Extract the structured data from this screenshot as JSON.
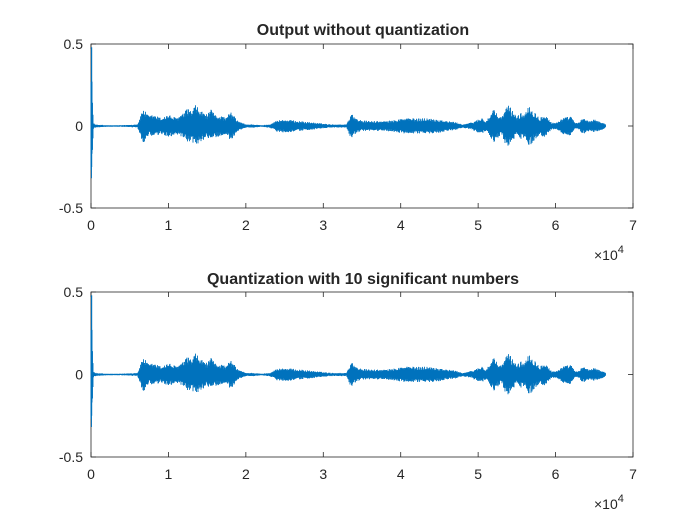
{
  "chart_data": [
    {
      "type": "line",
      "title": "Output without quantization",
      "xlabel": "",
      "ylabel": "",
      "xlim": [
        0,
        70000
      ],
      "ylim": [
        -0.5,
        0.5
      ],
      "xticks": [
        0,
        10000,
        20000,
        30000,
        40000,
        50000,
        60000,
        70000
      ],
      "xtick_labels": [
        "0",
        "1",
        "2",
        "3",
        "4",
        "5",
        "6",
        "7"
      ],
      "yticks": [
        -0.5,
        0,
        0.5
      ],
      "ytick_labels": [
        "-0.5",
        "0",
        "0.5"
      ],
      "x_exponent": {
        "base": "×10",
        "power": "4"
      },
      "grid": false,
      "line_color": "#0072bd",
      "sample_count": 66500,
      "envelope": {
        "x": [
          0,
          300,
          500,
          2000,
          4000,
          6000,
          6400,
          6700,
          7000,
          7500,
          8000,
          9000,
          10000,
          11000,
          12000,
          12500,
          13000,
          13500,
          14000,
          15000,
          15500,
          16000,
          17000,
          17500,
          18000,
          18500,
          19000,
          20000,
          21000,
          22000,
          23000,
          23500,
          24000,
          25000,
          26000,
          27000,
          28000,
          29000,
          30000,
          31000,
          32000,
          33000,
          33700,
          34000,
          35000,
          36000,
          37000,
          38000,
          39000,
          40000,
          41000,
          42000,
          43000,
          44000,
          45000,
          46000,
          47000,
          48000,
          49000,
          50000,
          50500,
          51000,
          51500,
          52000,
          53000,
          53500,
          54000,
          54500,
          55000,
          55500,
          56000,
          56500,
          57000,
          58000,
          58500,
          59000,
          59500,
          60000,
          61000,
          62000,
          62500,
          63000,
          63500,
          64000,
          64500,
          65000,
          65500,
          66000,
          66500
        ],
        "amplitude": [
          0.48,
          0.02,
          0.01,
          0.005,
          0.005,
          0.01,
          0.06,
          0.11,
          0.09,
          0.06,
          0.07,
          0.05,
          0.07,
          0.05,
          0.08,
          0.11,
          0.09,
          0.13,
          0.1,
          0.07,
          0.1,
          0.07,
          0.06,
          0.05,
          0.09,
          0.06,
          0.03,
          0.01,
          0.01,
          0.005,
          0.01,
          0.02,
          0.035,
          0.04,
          0.035,
          0.03,
          0.025,
          0.02,
          0.015,
          0.01,
          0.01,
          0.01,
          0.09,
          0.05,
          0.035,
          0.03,
          0.03,
          0.03,
          0.035,
          0.045,
          0.05,
          0.045,
          0.05,
          0.045,
          0.04,
          0.03,
          0.025,
          0.01,
          0.02,
          0.04,
          0.05,
          0.03,
          0.06,
          0.1,
          0.05,
          0.11,
          0.13,
          0.09,
          0.06,
          0.08,
          0.07,
          0.14,
          0.1,
          0.05,
          0.08,
          0.05,
          0.02,
          0.02,
          0.05,
          0.06,
          0.02,
          0.02,
          0.05,
          0.04,
          0.03,
          0.04,
          0.03,
          0.025,
          0.01
        ]
      },
      "onset_spike": {
        "x": 0,
        "max": 0.48,
        "min": -0.25
      }
    },
    {
      "type": "line",
      "title": "Quantization with 10 significant numbers",
      "xlabel": "",
      "ylabel": "",
      "xlim": [
        0,
        70000
      ],
      "ylim": [
        -0.5,
        0.5
      ],
      "xticks": [
        0,
        10000,
        20000,
        30000,
        40000,
        50000,
        60000,
        70000
      ],
      "xtick_labels": [
        "0",
        "1",
        "2",
        "3",
        "4",
        "5",
        "6",
        "7"
      ],
      "yticks": [
        -0.5,
        0,
        0.5
      ],
      "ytick_labels": [
        "-0.5",
        "0",
        "0.5"
      ],
      "x_exponent": {
        "base": "×10",
        "power": "4"
      },
      "grid": false,
      "line_color": "#0072bd",
      "sample_count": 66500,
      "envelope": {
        "x": [
          0,
          300,
          500,
          2000,
          4000,
          6000,
          6400,
          6700,
          7000,
          7500,
          8000,
          9000,
          10000,
          11000,
          12000,
          12500,
          13000,
          13500,
          14000,
          15000,
          15500,
          16000,
          17000,
          17500,
          18000,
          18500,
          19000,
          20000,
          21000,
          22000,
          23000,
          23500,
          24000,
          25000,
          26000,
          27000,
          28000,
          29000,
          30000,
          31000,
          32000,
          33000,
          33700,
          34000,
          35000,
          36000,
          37000,
          38000,
          39000,
          40000,
          41000,
          42000,
          43000,
          44000,
          45000,
          46000,
          47000,
          48000,
          49000,
          50000,
          50500,
          51000,
          51500,
          52000,
          53000,
          53500,
          54000,
          54500,
          55000,
          55500,
          56000,
          56500,
          57000,
          58000,
          58500,
          59000,
          59500,
          60000,
          61000,
          62000,
          62500,
          63000,
          63500,
          64000,
          64500,
          65000,
          65500,
          66000,
          66500
        ],
        "amplitude": [
          0.48,
          0.02,
          0.01,
          0.005,
          0.005,
          0.01,
          0.06,
          0.11,
          0.09,
          0.06,
          0.07,
          0.05,
          0.07,
          0.05,
          0.08,
          0.11,
          0.09,
          0.13,
          0.1,
          0.07,
          0.1,
          0.07,
          0.06,
          0.05,
          0.09,
          0.06,
          0.03,
          0.01,
          0.01,
          0.005,
          0.01,
          0.02,
          0.035,
          0.04,
          0.035,
          0.03,
          0.025,
          0.02,
          0.015,
          0.01,
          0.01,
          0.01,
          0.09,
          0.05,
          0.035,
          0.03,
          0.03,
          0.03,
          0.035,
          0.045,
          0.05,
          0.045,
          0.05,
          0.045,
          0.04,
          0.03,
          0.025,
          0.01,
          0.02,
          0.04,
          0.05,
          0.03,
          0.06,
          0.1,
          0.05,
          0.11,
          0.13,
          0.09,
          0.06,
          0.08,
          0.07,
          0.14,
          0.1,
          0.05,
          0.08,
          0.05,
          0.02,
          0.02,
          0.05,
          0.06,
          0.02,
          0.02,
          0.05,
          0.04,
          0.03,
          0.04,
          0.03,
          0.025,
          0.01
        ]
      },
      "onset_spike": {
        "x": 0,
        "max": 0.48,
        "min": -0.25
      }
    }
  ]
}
